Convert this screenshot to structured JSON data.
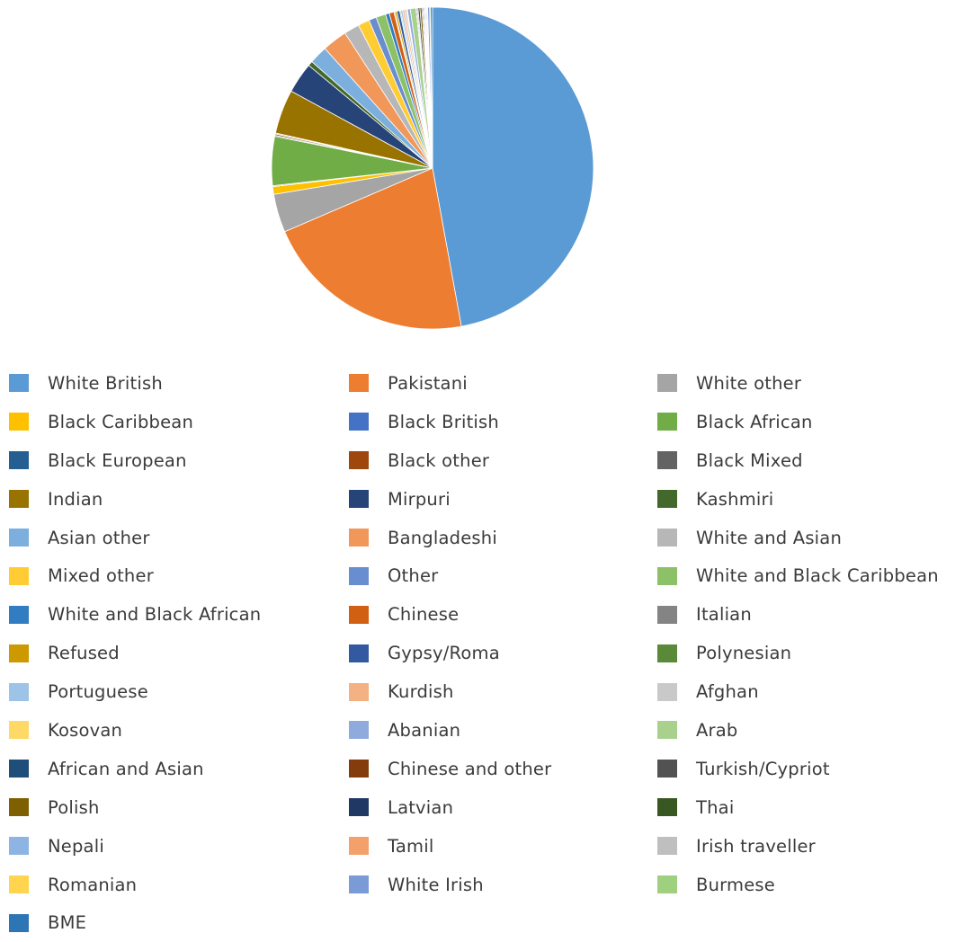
{
  "chart_data": {
    "type": "pie",
    "title": "",
    "legend_position": "bottom",
    "slices": [
      {
        "label": "White British",
        "value": 48.9,
        "color": "#5b9bd5"
      },
      {
        "label": "Pakistani",
        "value": 22.2,
        "color": "#ed7d31"
      },
      {
        "label": "White other",
        "value": 4.0,
        "color": "#a5a5a5"
      },
      {
        "label": "Black Caribbean",
        "value": 0.8,
        "color": "#ffc000"
      },
      {
        "label": "Black British",
        "value": 0.1,
        "color": "#4472c4"
      },
      {
        "label": "Black African",
        "value": 5.1,
        "color": "#70ad47"
      },
      {
        "label": "Black European",
        "value": 0.1,
        "color": "#255e91"
      },
      {
        "label": "Black other",
        "value": 0.15,
        "color": "#9e480e"
      },
      {
        "label": "Black Mixed",
        "value": 0.1,
        "color": "#636363"
      },
      {
        "label": "Indian",
        "value": 4.6,
        "color": "#997300"
      },
      {
        "label": "Mirpuri",
        "value": 3.2,
        "color": "#264478"
      },
      {
        "label": "Kashmiri",
        "value": 0.5,
        "color": "#43682b"
      },
      {
        "label": "Asian other",
        "value": 1.9,
        "color": "#7cafdd"
      },
      {
        "label": "Bangladeshi",
        "value": 2.6,
        "color": "#f1975a"
      },
      {
        "label": "White and Asian",
        "value": 1.6,
        "color": "#b7b7b7"
      },
      {
        "label": "Mixed other",
        "value": 1.2,
        "color": "#ffcd33"
      },
      {
        "label": "Other",
        "value": 0.8,
        "color": "#698ed0"
      },
      {
        "label": "White and Black Caribbean",
        "value": 1.0,
        "color": "#8cc168"
      },
      {
        "label": "White and Black African",
        "value": 0.4,
        "color": "#327dc2"
      },
      {
        "label": "Chinese",
        "value": 0.5,
        "color": "#d26012"
      },
      {
        "label": "Italian",
        "value": 0.1,
        "color": "#848484"
      },
      {
        "label": "Refused",
        "value": 0.2,
        "color": "#cc9a00"
      },
      {
        "label": "Gypsy/Roma",
        "value": 0.3,
        "color": "#335aa1"
      },
      {
        "label": "Polynesian",
        "value": 0.1,
        "color": "#5a8a39"
      },
      {
        "label": "Portuguese",
        "value": 0.2,
        "color": "#9dc3e6"
      },
      {
        "label": "Kurdish",
        "value": 0.2,
        "color": "#f4b183"
      },
      {
        "label": "Afghan",
        "value": 0.2,
        "color": "#c9c9c9"
      },
      {
        "label": "Kosovan",
        "value": 0.1,
        "color": "#ffd966"
      },
      {
        "label": "Abanian",
        "value": 0.3,
        "color": "#8faadc"
      },
      {
        "label": "Arab",
        "value": 0.6,
        "color": "#a9d18e"
      },
      {
        "label": "African and Asian",
        "value": 0.1,
        "color": "#1f4e79"
      },
      {
        "label": "Chinese and other",
        "value": 0.1,
        "color": "#843c0c"
      },
      {
        "label": "Turkish/Cypriot",
        "value": 0.2,
        "color": "#525252"
      },
      {
        "label": "Polish",
        "value": 0.2,
        "color": "#7f6000"
      },
      {
        "label": "Latvian",
        "value": 0.1,
        "color": "#203864"
      },
      {
        "label": "Thai",
        "value": 0.1,
        "color": "#385723"
      },
      {
        "label": "Nepali",
        "value": 0.1,
        "color": "#8eb4e3"
      },
      {
        "label": "Tamil",
        "value": 0.1,
        "color": "#f4a06b"
      },
      {
        "label": "Irish traveller",
        "value": 0.1,
        "color": "#bfbfbf"
      },
      {
        "label": "Romanian",
        "value": 0.1,
        "color": "#ffd54f"
      },
      {
        "label": "White Irish",
        "value": 0.2,
        "color": "#7b9bd6"
      },
      {
        "label": "Burmese",
        "value": 0.1,
        "color": "#9fd07f"
      },
      {
        "label": "BME",
        "value": 0.2,
        "color": "#2e75b6"
      }
    ]
  }
}
